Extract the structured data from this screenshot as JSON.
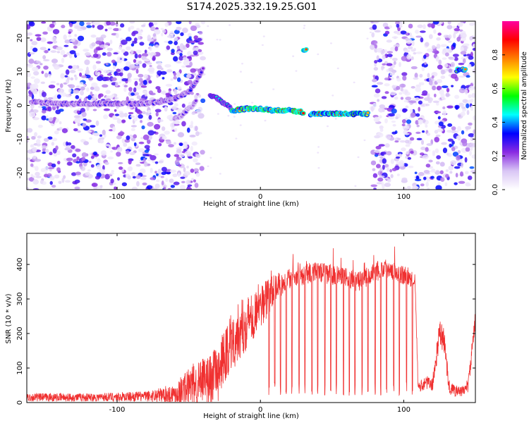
{
  "title": "S174.2025.332.19.25.G01",
  "chart_data": [
    {
      "type": "heatmap",
      "name": "spectrogram",
      "xlabel": "Height of straight line (km)",
      "ylabel": "Frequency (Hz)",
      "xlim": [
        -163,
        150
      ],
      "ylim": [
        -25,
        25
      ],
      "xticks": [
        -100,
        0,
        100
      ],
      "yticks": [
        -20,
        -10,
        0,
        10,
        20
      ],
      "colorbar": {
        "label": "Normalized spectral amplitude",
        "range": [
          0,
          1
        ],
        "ticks": [
          "0.0",
          "0.2",
          "0.4",
          "0.6",
          "0.8"
        ],
        "tick_values": [
          0.0,
          0.2,
          0.4,
          0.6,
          0.8
        ],
        "colors": [
          "#ffffff",
          "#d9c6f5",
          "#8a2be2",
          "#0000ff",
          "#00ffff",
          "#00ff00",
          "#ffff00",
          "#ff8000",
          "#ff0000",
          "#ff00a0"
        ]
      },
      "signal_tracks": [
        {
          "x": [
            -160,
            -140,
            -120,
            -100,
            -85,
            -70,
            -60,
            -50,
            -45,
            -40
          ],
          "y": [
            1,
            0.5,
            0.5,
            0.5,
            0.5,
            1,
            2,
            4,
            7,
            11
          ],
          "amp": 0.3
        },
        {
          "x": [
            -60,
            -55,
            -50,
            -45
          ],
          "y": [
            -4,
            -3,
            -1,
            1
          ],
          "amp": 0.25
        },
        {
          "x": [
            -35,
            -30,
            -25,
            -20
          ],
          "y": [
            3,
            2,
            0.5,
            -1
          ],
          "amp": 0.45
        },
        {
          "x": [
            -20,
            -10,
            0,
            10,
            20,
            30
          ],
          "y": [
            -1.5,
            -1,
            -1,
            -1.5,
            -1.5,
            -2
          ],
          "amp": 0.85
        },
        {
          "x": [
            35,
            45,
            55,
            65,
            75
          ],
          "y": [
            -2.5,
            -2.5,
            -2.5,
            -2.5,
            -2.5
          ],
          "amp": 0.8
        },
        {
          "x": [
            30,
            32
          ],
          "y": [
            16.5,
            16.5
          ],
          "amp": 0.9
        },
        {
          "x": [
            137,
            143
          ],
          "y": [
            10.5,
            10.5
          ],
          "amp": 0.7
        }
      ],
      "noise_regions": [
        {
          "x": [
            -163,
            -40
          ],
          "density": "high"
        },
        {
          "x": [
            78,
            150
          ],
          "density": "high"
        }
      ]
    },
    {
      "type": "line",
      "name": "snr",
      "xlabel": "Height of straight line (km)",
      "ylabel": "SNR (10 * v/v)",
      "xlim": [
        -163,
        150
      ],
      "ylim": [
        0,
        490
      ],
      "xticks": [
        -100,
        0,
        100
      ],
      "yticks": [
        0,
        100,
        200,
        300,
        400
      ],
      "color": "#f03030",
      "envelope": {
        "x": [
          -163,
          -120,
          -80,
          -60,
          -50,
          -40,
          -30,
          -20,
          -10,
          0,
          10,
          20,
          30,
          40,
          50,
          60,
          70,
          80,
          90,
          100,
          108,
          110,
          115,
          120,
          125,
          128,
          132,
          140,
          145,
          150
        ],
        "base": [
          15,
          15,
          18,
          25,
          45,
          60,
          80,
          180,
          230,
          280,
          330,
          360,
          370,
          380,
          370,
          360,
          350,
          380,
          390,
          370,
          360,
          40,
          60,
          50,
          200,
          180,
          40,
          30,
          50,
          240
        ],
        "noise": [
          12,
          12,
          15,
          30,
          60,
          70,
          80,
          90,
          80,
          70,
          40,
          30,
          30,
          30,
          30,
          30,
          30,
          30,
          30,
          30,
          30,
          15,
          20,
          20,
          40,
          40,
          20,
          15,
          20,
          30
        ]
      },
      "dropouts_x": [
        6,
        10,
        14,
        18,
        22,
        27,
        31,
        36,
        40,
        45,
        49,
        53,
        58,
        62,
        66,
        71,
        75,
        80,
        84,
        88,
        93,
        97,
        102,
        106
      ]
    }
  ]
}
